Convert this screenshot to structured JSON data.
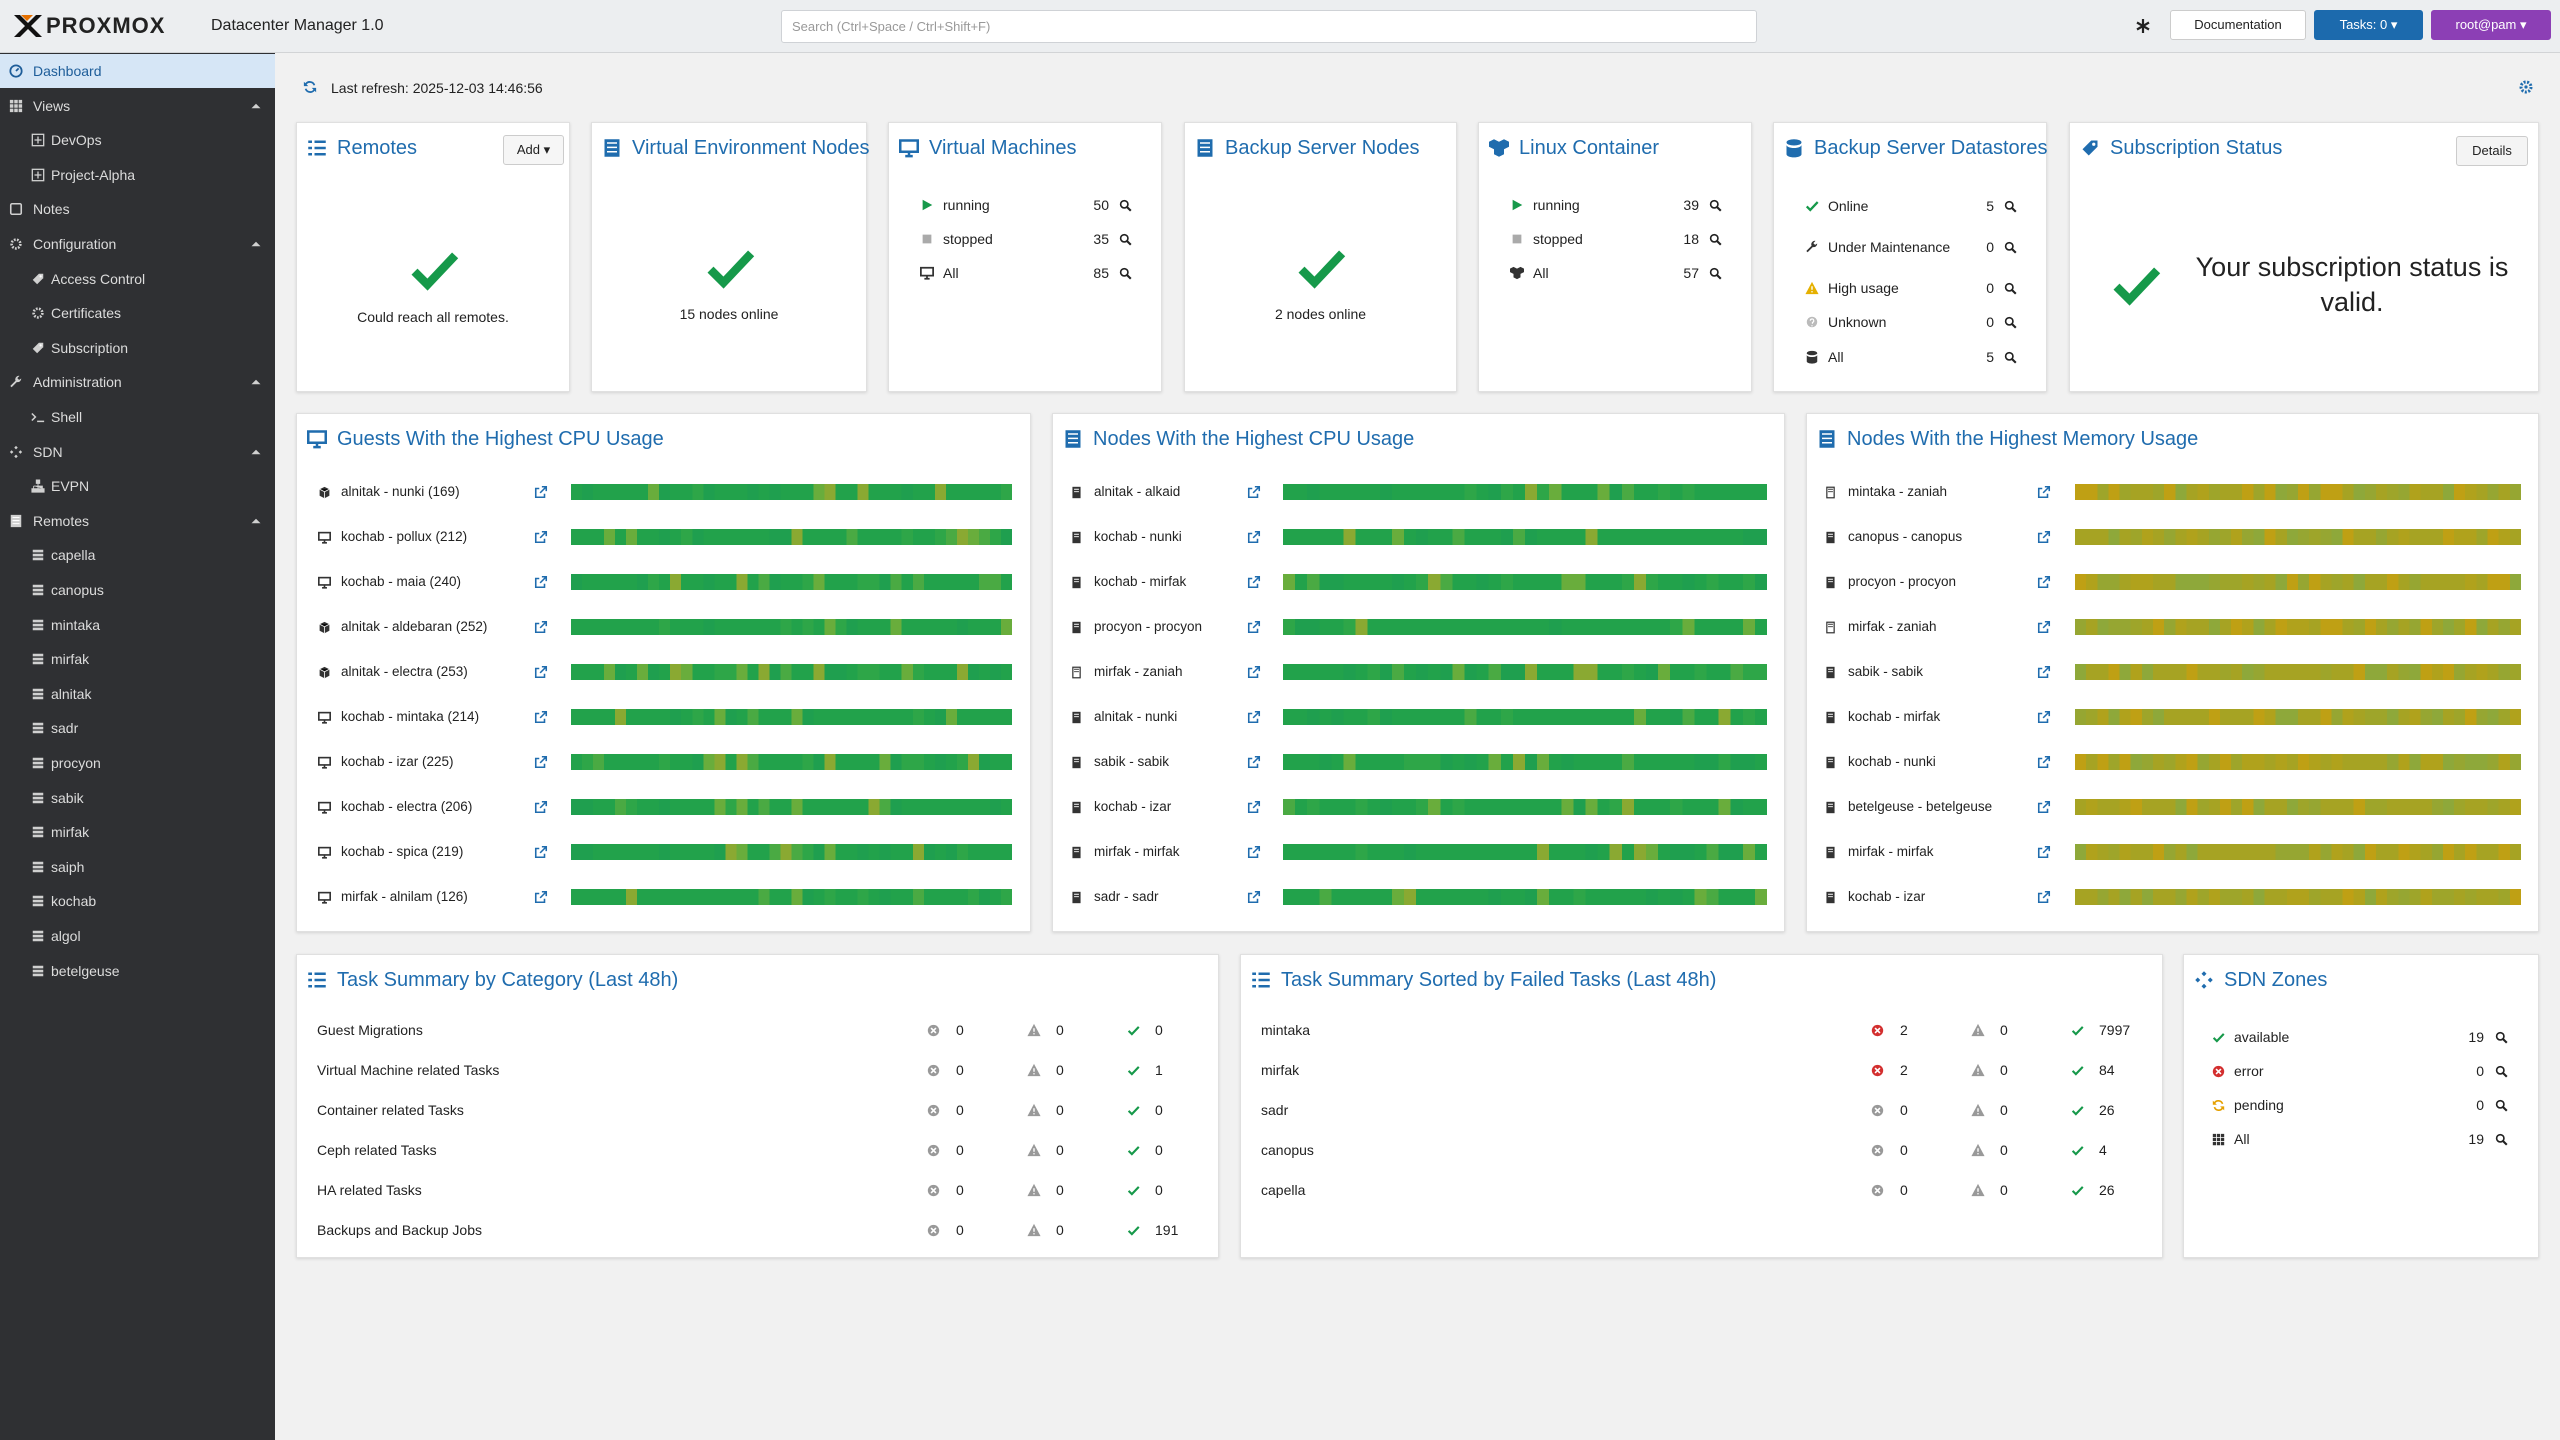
{
  "header": {
    "logo": "PROXMOX",
    "product": "Datacenter Manager 1.0",
    "search_placeholder": "Search (Ctrl+Space / Ctrl+Shift+F)",
    "documentation": "Documentation",
    "tasks": "Tasks: 0",
    "user": "root@pam"
  },
  "sidebar": {
    "selected": 0,
    "items": [
      {
        "label": "Dashboard",
        "level": 0
      },
      {
        "label": "Views",
        "level": 0,
        "expanded": true
      },
      {
        "label": "DevOps",
        "level": 1
      },
      {
        "label": "Project-Alpha",
        "level": 1
      },
      {
        "label": "Notes",
        "level": 0
      },
      {
        "label": "Configuration",
        "level": 0,
        "expanded": true
      },
      {
        "label": "Access Control",
        "level": 1
      },
      {
        "label": "Certificates",
        "level": 1
      },
      {
        "label": "Subscription",
        "level": 1
      },
      {
        "label": "Administration",
        "level": 0,
        "expanded": true
      },
      {
        "label": "Shell",
        "level": 1
      },
      {
        "label": "SDN",
        "level": 0,
        "expanded": true
      },
      {
        "label": "EVPN",
        "level": 1
      },
      {
        "label": "Remotes",
        "level": 0,
        "expanded": true
      },
      {
        "label": "capella",
        "level": 1
      },
      {
        "label": "canopus",
        "level": 1
      },
      {
        "label": "mintaka",
        "level": 1
      },
      {
        "label": "mirfak",
        "level": 1
      },
      {
        "label": "alnitak",
        "level": 1
      },
      {
        "label": "sadr",
        "level": 1
      },
      {
        "label": "procyon",
        "level": 1
      },
      {
        "label": "sabik",
        "level": 1
      },
      {
        "label": "mirfak",
        "level": 1
      },
      {
        "label": "saiph",
        "level": 1
      },
      {
        "label": "kochab",
        "level": 1
      },
      {
        "label": "algol",
        "level": 1
      },
      {
        "label": "betelgeuse",
        "level": 1
      }
    ]
  },
  "toolbar": {
    "last_refresh": "Last refresh: 2025-12-03 14:46:56"
  },
  "remotes": {
    "title": "Remotes",
    "button": "Add",
    "status": "Could reach all remotes."
  },
  "ve_nodes": {
    "title": "Virtual Environment Nodes",
    "status": "15 nodes online"
  },
  "virtual_machines": {
    "title": "Virtual Machines",
    "rows": [
      {
        "label": "running",
        "value": 50
      },
      {
        "label": "stopped",
        "value": 35
      },
      {
        "label": "All",
        "value": 85
      }
    ]
  },
  "backup_nodes": {
    "title": "Backup Server Nodes",
    "status": "2 nodes online"
  },
  "linux_container": {
    "title": "Linux Container",
    "rows": [
      {
        "label": "running",
        "value": 39
      },
      {
        "label": "stopped",
        "value": 18
      },
      {
        "label": "All",
        "value": 57
      }
    ]
  },
  "datastores": {
    "title": "Backup Server Datastores",
    "rows": [
      {
        "label": "Online",
        "value": 5
      },
      {
        "label": "Under Maintenance",
        "value": 0
      },
      {
        "label": "High usage",
        "value": 0
      },
      {
        "label": "Unknown",
        "value": 0
      },
      {
        "label": "All",
        "value": 5
      }
    ]
  },
  "subscription": {
    "title": "Subscription Status",
    "button": "Details",
    "message": "Your subscription status is valid."
  },
  "guests_cpu": {
    "title": "Guests With the Highest CPU Usage",
    "rows": [
      "alnitak - nunki (169)",
      "kochab - pollux (212)",
      "kochab - maia (240)",
      "alnitak - aldebaran (252)",
      "alnitak - electra (253)",
      "kochab - mintaka (214)",
      "kochab - izar (225)",
      "kochab - electra (206)",
      "kochab - spica (219)",
      "mirfak - alnilam (126)"
    ]
  },
  "nodes_cpu": {
    "title": "Nodes With the Highest CPU Usage",
    "rows": [
      "alnitak - alkaid",
      "kochab - nunki",
      "kochab - mirfak",
      "procyon - procyon",
      "mirfak - zaniah",
      "alnitak - nunki",
      "sabik - sabik",
      "kochab - izar",
      "mirfak - mirfak",
      "sadr - sadr"
    ]
  },
  "nodes_memory": {
    "title": "Nodes With the Highest Memory Usage",
    "rows": [
      "mintaka - zaniah",
      "canopus - canopus",
      "procyon - procyon",
      "mirfak - zaniah",
      "sabik - sabik",
      "kochab - mirfak",
      "kochab - nunki",
      "betelgeuse - betelgeuse",
      "mirfak - mirfak",
      "kochab - izar"
    ]
  },
  "task_summary": {
    "title": "Task Summary by Category (Last 48h)",
    "rows": [
      {
        "label": "Guest Migrations",
        "failed": 0,
        "warnings": 0,
        "ok": 0
      },
      {
        "label": "Virtual Machine related Tasks",
        "failed": 0,
        "warnings": 0,
        "ok": 1
      },
      {
        "label": "Container related Tasks",
        "failed": 0,
        "warnings": 0,
        "ok": 0
      },
      {
        "label": "Ceph related Tasks",
        "failed": 0,
        "warnings": 0,
        "ok": 0
      },
      {
        "label": "HA related Tasks",
        "failed": 0,
        "warnings": 0,
        "ok": 0
      },
      {
        "label": "Backups and Backup Jobs",
        "failed": 0,
        "warnings": 0,
        "ok": 191
      }
    ]
  },
  "task_failed": {
    "title": "Task Summary Sorted by Failed Tasks (Last 48h)",
    "rows": [
      {
        "label": "mintaka",
        "failed": 2,
        "warnings": 0,
        "ok": 7997
      },
      {
        "label": "mirfak",
        "failed": 2,
        "warnings": 0,
        "ok": 84
      },
      {
        "label": "sadr",
        "failed": 0,
        "warnings": 0,
        "ok": 26
      },
      {
        "label": "canopus",
        "failed": 0,
        "warnings": 0,
        "ok": 4
      },
      {
        "label": "capella",
        "failed": 0,
        "warnings": 0,
        "ok": 26
      }
    ]
  },
  "sdn_zones": {
    "title": "SDN Zones",
    "rows": [
      {
        "label": "available",
        "value": 19
      },
      {
        "label": "error",
        "value": 0
      },
      {
        "label": "pending",
        "value": 0
      },
      {
        "label": "All",
        "value": 19
      }
    ]
  }
}
